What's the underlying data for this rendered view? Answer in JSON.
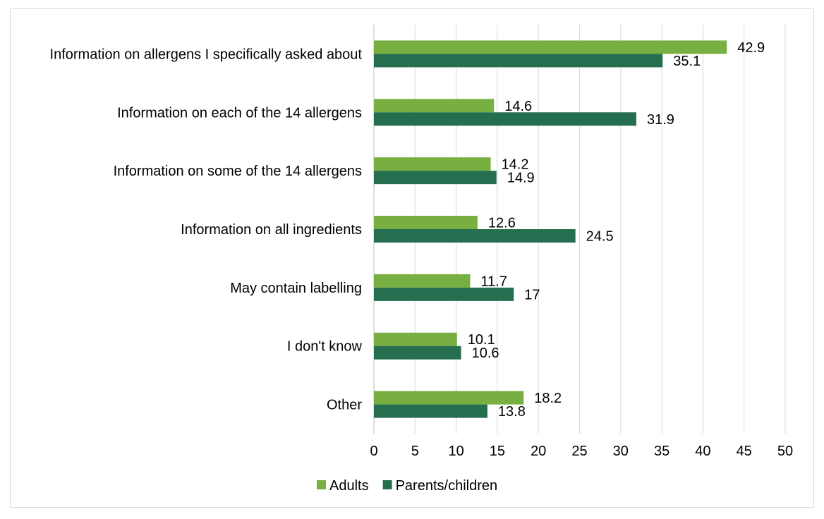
{
  "chart_data": {
    "type": "bar",
    "orientation": "horizontal",
    "categories": [
      "Information on allergens I specifically asked about",
      "Information on each of the 14 allergens",
      "Information on some of the 14 allergens",
      "Information on all ingredients",
      "May contain labelling",
      "I don't know",
      "Other"
    ],
    "series": [
      {
        "name": "Adults",
        "color": "#77b041",
        "values": [
          42.9,
          14.6,
          14.2,
          12.6,
          11.7,
          10.1,
          18.2
        ]
      },
      {
        "name": "Parents/children",
        "color": "#256e4f",
        "values": [
          35.1,
          31.9,
          14.9,
          24.5,
          17,
          10.6,
          13.8
        ]
      }
    ],
    "xlim": [
      0,
      50
    ],
    "xticks": [
      0,
      5,
      10,
      15,
      20,
      25,
      30,
      35,
      40,
      45,
      50
    ],
    "grid": true,
    "legend_position": "bottom",
    "title": "",
    "xlabel": "",
    "ylabel": ""
  }
}
